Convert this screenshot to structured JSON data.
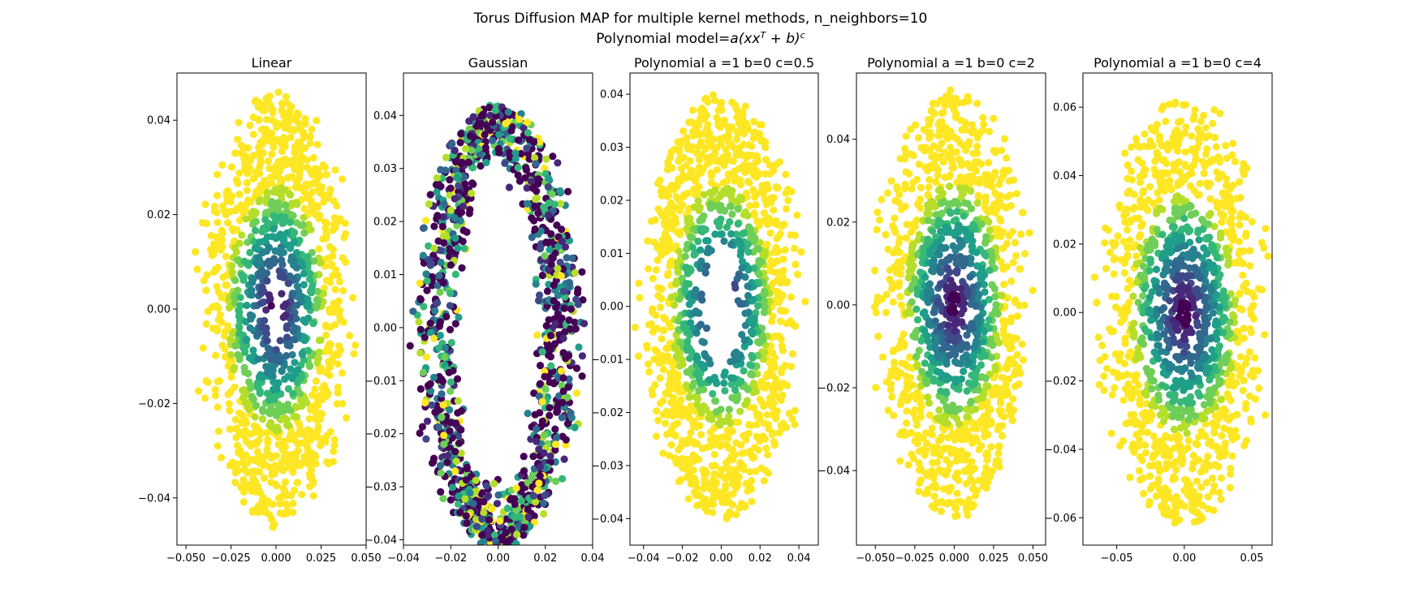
{
  "figure": {
    "title_line1": "Torus Diffusion MAP for multiple kernel methods, n_neighbors=10",
    "title_line2_prefix": "Polynomial model=",
    "title_line2_math": "a(xx",
    "title_line2_sup1": "T",
    "title_line2_mid": " + b)",
    "title_line2_sup2": "c"
  },
  "colors": {
    "viridis": [
      "#440154",
      "#482878",
      "#3e4989",
      "#31688e",
      "#26828e",
      "#1f9e89",
      "#35b779",
      "#6ece58",
      "#b5de2b",
      "#fde725"
    ],
    "axes": "#000000",
    "background": "#ffffff"
  },
  "chart_data": [
    {
      "type": "scatter",
      "title": "Linear",
      "xlim": [
        -0.055,
        0.05
      ],
      "ylim": [
        -0.05,
        0.05
      ],
      "xticks": [
        -0.05,
        -0.025,
        0.0,
        0.025,
        0.05
      ],
      "xtick_labels": [
        "−0.050",
        "−0.025",
        "0.000",
        "0.025",
        "0.050"
      ],
      "yticks": [
        -0.04,
        -0.02,
        0.0,
        0.02,
        0.04
      ],
      "ytick_labels": [
        "−0.04",
        "−0.02",
        "0.00",
        "0.02",
        "0.04"
      ],
      "shape": "filled-ellipse",
      "spread_x": 0.048,
      "spread_y": 0.046,
      "hole_x": 0.004,
      "hole_y": 0.008,
      "color_mode": "radial-dark-center",
      "n_points": 1300
    },
    {
      "type": "scatter",
      "title": "Gaussian",
      "xlim": [
        -0.04,
        0.04
      ],
      "ylim": [
        -0.041,
        0.048
      ],
      "xticks": [
        -0.04,
        -0.02,
        0.0,
        0.02,
        0.04
      ],
      "xtick_labels": [
        "−0.04",
        "−0.02",
        "0.00",
        "0.02",
        "0.04"
      ],
      "yticks": [
        -0.04,
        -0.03,
        -0.02,
        -0.01,
        0.0,
        0.01,
        0.02,
        0.03,
        0.04
      ],
      "ytick_labels": [
        "−0.04",
        "−0.03",
        "−0.02",
        "−0.01",
        "0.00",
        "0.01",
        "0.02",
        "0.03",
        "0.04"
      ],
      "shape": "ring",
      "spread_x": 0.038,
      "spread_y": 0.042,
      "hole_x": 0.016,
      "hole_y": 0.018,
      "color_mode": "mixed",
      "n_points": 1300
    },
    {
      "type": "scatter",
      "title": "Polynomial  a =1 b=0 c=0.5",
      "xlim": [
        -0.047,
        0.05
      ],
      "ylim": [
        -0.045,
        0.044
      ],
      "xticks": [
        -0.04,
        -0.02,
        0.0,
        0.02,
        0.04
      ],
      "xtick_labels": [
        "−0.04",
        "−0.02",
        "0.00",
        "0.02",
        "0.04"
      ],
      "yticks": [
        -0.04,
        -0.03,
        -0.02,
        -0.01,
        0.0,
        0.01,
        0.02,
        0.03,
        0.04
      ],
      "ytick_labels": [
        "−0.04",
        "−0.03",
        "−0.02",
        "−0.01",
        "0.00",
        "0.01",
        "0.02",
        "0.03",
        "0.04"
      ],
      "shape": "filled-ellipse",
      "spread_x": 0.046,
      "spread_y": 0.04,
      "hole_x": 0.011,
      "hole_y": 0.012,
      "color_mode": "radial-dark-center",
      "n_points": 1300
    },
    {
      "type": "scatter",
      "title": "Polynomial  a =1 b=0 c=2",
      "xlim": [
        -0.062,
        0.058
      ],
      "ylim": [
        -0.058,
        0.056
      ],
      "xticks": [
        -0.05,
        -0.025,
        0.0,
        0.025,
        0.05
      ],
      "xtick_labels": [
        "−0.050",
        "−0.025",
        "0.000",
        "0.025",
        "0.050"
      ],
      "yticks": [
        -0.04,
        -0.02,
        0.0,
        0.02,
        0.04
      ],
      "ytick_labels": [
        "−0.04",
        "−0.02",
        "0.00",
        "0.02",
        "0.04"
      ],
      "shape": "filled-ellipse",
      "spread_x": 0.055,
      "spread_y": 0.052,
      "hole_x": 0.0,
      "hole_y": 0.0,
      "color_mode": "radial-dark-center",
      "n_points": 1300
    },
    {
      "type": "scatter",
      "title": "Polynomial  a =1 b=0 c=4",
      "xlim": [
        -0.075,
        0.065
      ],
      "ylim": [
        -0.068,
        0.07
      ],
      "xticks": [
        -0.05,
        0.0,
        0.05
      ],
      "xtick_labels": [
        "−0.05",
        "0.00",
        "0.05"
      ],
      "yticks": [
        -0.06,
        -0.04,
        -0.02,
        0.0,
        0.02,
        0.04,
        0.06
      ],
      "ytick_labels": [
        "−0.06",
        "−0.04",
        "−0.02",
        "0.00",
        "0.02",
        "0.04",
        "0.06"
      ],
      "shape": "filled-ellipse",
      "spread_x": 0.07,
      "spread_y": 0.063,
      "hole_x": 0.0,
      "hole_y": 0.0,
      "color_mode": "radial-dark-center",
      "n_points": 1300
    }
  ]
}
